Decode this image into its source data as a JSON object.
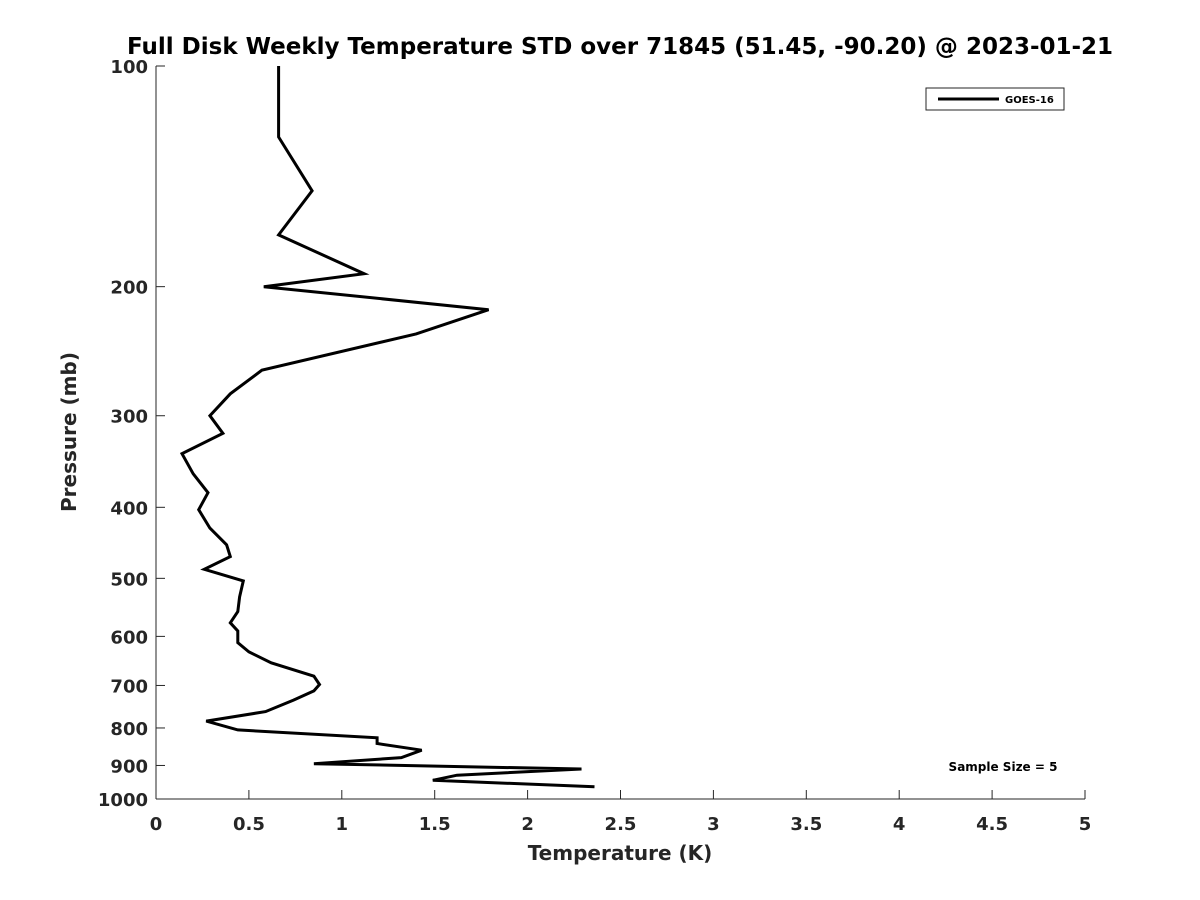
{
  "chart_data": {
    "type": "line",
    "title": "Full Disk Weekly Temperature STD over 71845 (51.45, -90.20) @ 2023-01-21",
    "xlabel": "Temperature (K)",
    "ylabel": "Pressure (mb)",
    "xlim": [
      0,
      5
    ],
    "ylim": [
      100,
      1000
    ],
    "y_scale": "log",
    "y_reversed": true,
    "x_ticks": [
      "0",
      "0.5",
      "1",
      "1.5",
      "2",
      "2.5",
      "3",
      "3.5",
      "4",
      "4.5",
      "5"
    ],
    "y_ticks": [
      "100",
      "200",
      "300",
      "400",
      "500",
      "600",
      "700",
      "800",
      "900",
      "1000"
    ],
    "grid": false,
    "legend": {
      "position": "top-right",
      "entries": [
        "GOES-16"
      ]
    },
    "annotation": "Sample Size = 5",
    "series": [
      {
        "name": "GOES-16",
        "color": "#000000",
        "points": [
          [
            0.66,
            100
          ],
          [
            0.66,
            125
          ],
          [
            0.84,
            148
          ],
          [
            0.66,
            170
          ],
          [
            1.12,
            192
          ],
          [
            0.58,
            200
          ],
          [
            1.79,
            215
          ],
          [
            1.4,
            232
          ],
          [
            0.57,
            260
          ],
          [
            0.4,
            280
          ],
          [
            0.29,
            300
          ],
          [
            0.36,
            317
          ],
          [
            0.14,
            338
          ],
          [
            0.2,
            360
          ],
          [
            0.28,
            382
          ],
          [
            0.23,
            403
          ],
          [
            0.29,
            427
          ],
          [
            0.38,
            450
          ],
          [
            0.4,
            467
          ],
          [
            0.26,
            486
          ],
          [
            0.47,
            504
          ],
          [
            0.45,
            530
          ],
          [
            0.44,
            555
          ],
          [
            0.4,
            575
          ],
          [
            0.44,
            590
          ],
          [
            0.44,
            612
          ],
          [
            0.5,
            630
          ],
          [
            0.62,
            652
          ],
          [
            0.85,
            680
          ],
          [
            0.88,
            698
          ],
          [
            0.85,
            712
          ],
          [
            0.74,
            733
          ],
          [
            0.59,
            760
          ],
          [
            0.27,
            783
          ],
          [
            0.44,
            805
          ],
          [
            1.19,
            825
          ],
          [
            1.19,
            840
          ],
          [
            1.43,
            858
          ],
          [
            1.32,
            878
          ],
          [
            0.85,
            895
          ],
          [
            2.29,
            910
          ],
          [
            1.62,
            928
          ],
          [
            1.49,
            943
          ],
          [
            2.36,
            962
          ]
        ]
      }
    ]
  }
}
